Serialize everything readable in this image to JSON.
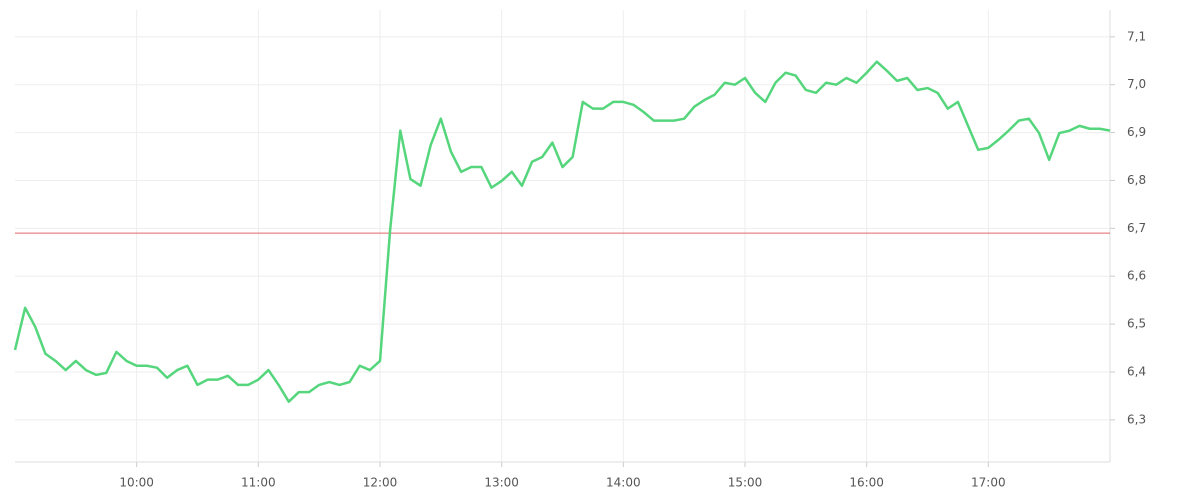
{
  "chart_data": {
    "type": "line",
    "x": [
      540,
      545,
      550,
      555,
      560,
      565,
      570,
      575,
      580,
      585,
      590,
      595,
      600,
      605,
      610,
      615,
      620,
      625,
      630,
      635,
      640,
      645,
      650,
      655,
      660,
      665,
      670,
      675,
      680,
      685,
      690,
      695,
      700,
      705,
      710,
      715,
      720,
      725,
      730,
      735,
      740,
      745,
      750,
      755,
      760,
      765,
      770,
      775,
      780,
      785,
      790,
      795,
      800,
      805,
      810,
      815,
      820,
      825,
      830,
      835,
      840,
      845,
      850,
      855,
      860,
      865,
      870,
      875,
      880,
      885,
      890,
      895,
      900,
      905,
      910,
      915,
      920,
      925,
      930,
      935,
      940,
      945,
      950,
      955,
      960,
      965,
      970,
      975,
      980,
      985,
      990,
      995,
      1000,
      1005,
      1010,
      1015,
      1020,
      1025,
      1030,
      1035,
      1040,
      1045,
      1050,
      1055,
      1060,
      1065,
      1070,
      1075,
      1080
    ],
    "series": [
      {
        "color": "#55d67c",
        "values": [
          6.446,
          6.534,
          6.494,
          6.438,
          6.423,
          6.404,
          6.423,
          6.404,
          6.394,
          6.398,
          6.442,
          6.423,
          6.413,
          6.413,
          6.409,
          6.388,
          6.404,
          6.413,
          6.373,
          6.384,
          6.384,
          6.392,
          6.373,
          6.373,
          6.384,
          6.404,
          6.373,
          6.338,
          6.358,
          6.358,
          6.373,
          6.379,
          6.373,
          6.379,
          6.413,
          6.404,
          6.423,
          6.697,
          6.904,
          6.803,
          6.789,
          6.874,
          6.929,
          6.86,
          6.818,
          6.828,
          6.828,
          6.785,
          6.799,
          6.818,
          6.789,
          6.839,
          6.849,
          6.879,
          6.828,
          6.849,
          6.964,
          6.95,
          6.95,
          6.964,
          6.964,
          6.958,
          6.943,
          6.925,
          6.925,
          6.925,
          6.929,
          6.954,
          6.968,
          6.979,
          7.004,
          7.0,
          7.014,
          6.983,
          6.964,
          7.004,
          7.025,
          7.019,
          6.989,
          6.983,
          7.004,
          7.0,
          7.014,
          7.004,
          7.025,
          7.048,
          7.029,
          7.008,
          7.014,
          6.989,
          6.993,
          6.983,
          6.95,
          6.964,
          6.914,
          6.864,
          6.868,
          6.885,
          6.904,
          6.925,
          6.929,
          6.899,
          6.843,
          6.899,
          6.904,
          6.914,
          6.908,
          6.908,
          6.904
        ]
      }
    ],
    "reference_line": {
      "value": 6.69,
      "color": "#e06666"
    },
    "xlim": [
      540,
      1080
    ],
    "xticks": [
      {
        "value": 600,
        "label": "10:00"
      },
      {
        "value": 660,
        "label": "11:00"
      },
      {
        "value": 720,
        "label": "12:00"
      },
      {
        "value": 780,
        "label": "13:00"
      },
      {
        "value": 840,
        "label": "14:00"
      },
      {
        "value": 900,
        "label": "15:00"
      },
      {
        "value": 960,
        "label": "16:00"
      },
      {
        "value": 1020,
        "label": "17:00"
      }
    ],
    "ylim": [
      6.212,
      7.156
    ],
    "yticks": [
      {
        "value": 6.3,
        "label": "6,3"
      },
      {
        "value": 6.4,
        "label": "6,4"
      },
      {
        "value": 6.5,
        "label": "6,5"
      },
      {
        "value": 6.6,
        "label": "6,6"
      },
      {
        "value": 6.7,
        "label": "6,7"
      },
      {
        "value": 6.8,
        "label": "6,8"
      },
      {
        "value": 6.9,
        "label": "6,9"
      },
      {
        "value": 7.0,
        "label": "7,0"
      },
      {
        "value": 7.1,
        "label": "7,1"
      }
    ],
    "grid": true
  }
}
